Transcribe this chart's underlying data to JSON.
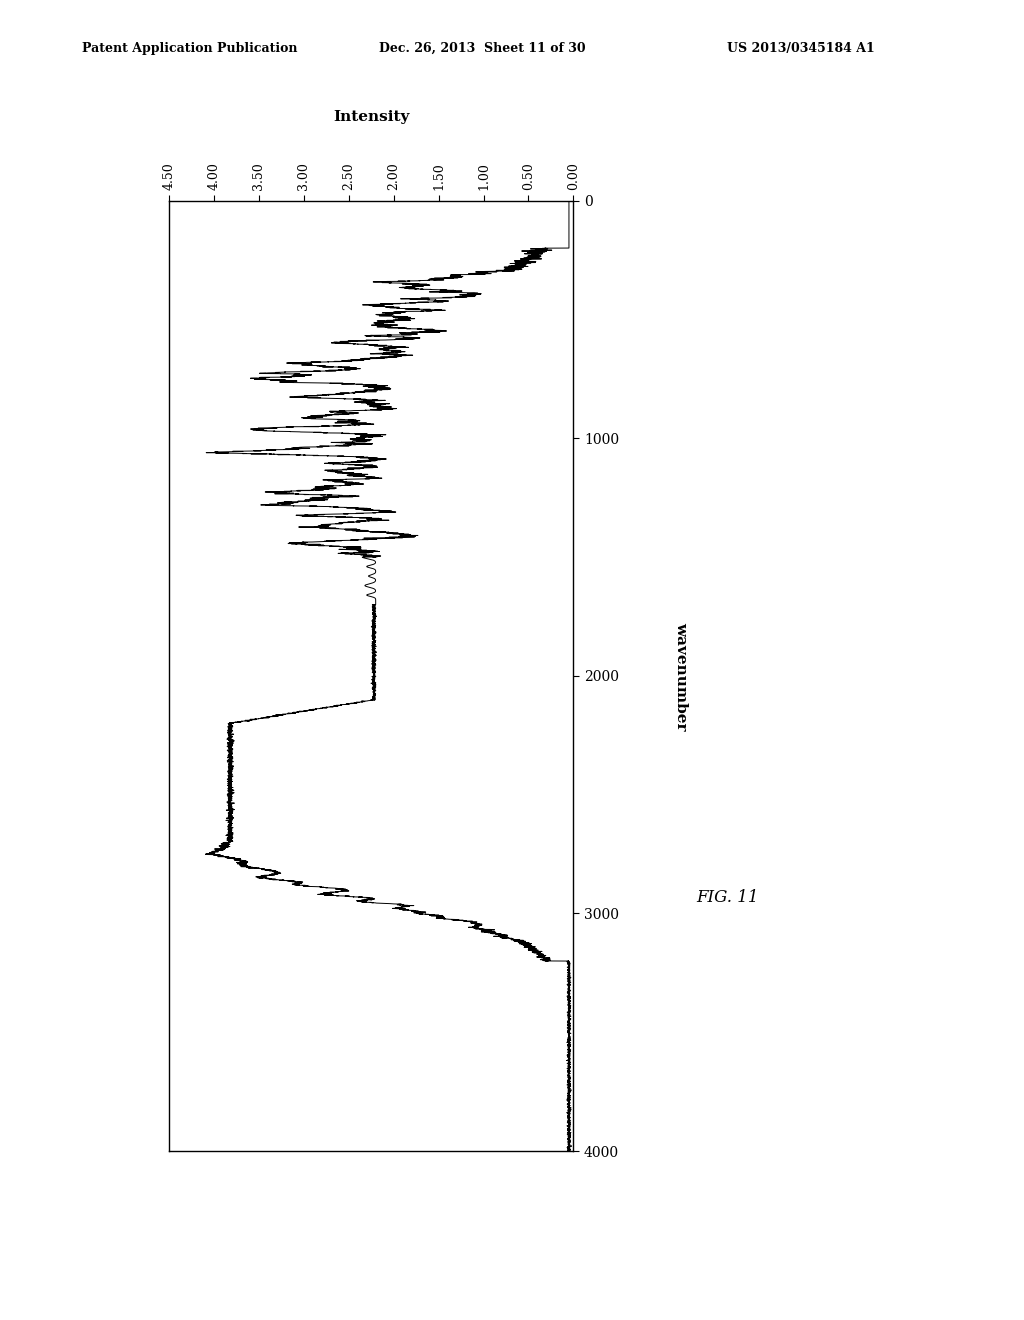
{
  "header_left": "Patent Application Publication",
  "header_center": "Dec. 26, 2013  Sheet 11 of 30",
  "header_right": "US 2013/0345184 A1",
  "xlabel": "Intensity",
  "ylabel": "wavenumber",
  "figure_label": "FIG. 11",
  "x_ticks": [
    0.0,
    0.5,
    1.0,
    1.5,
    2.0,
    2.5,
    3.0,
    3.5,
    4.0,
    4.5
  ],
  "y_ticks": [
    0,
    1000,
    2000,
    3000,
    4000
  ],
  "xlim_left": 4.5,
  "xlim_right": 0.0,
  "ylim_top": 0,
  "ylim_bottom": 4000,
  "bg_color": "#ffffff",
  "line_color": "#000000"
}
